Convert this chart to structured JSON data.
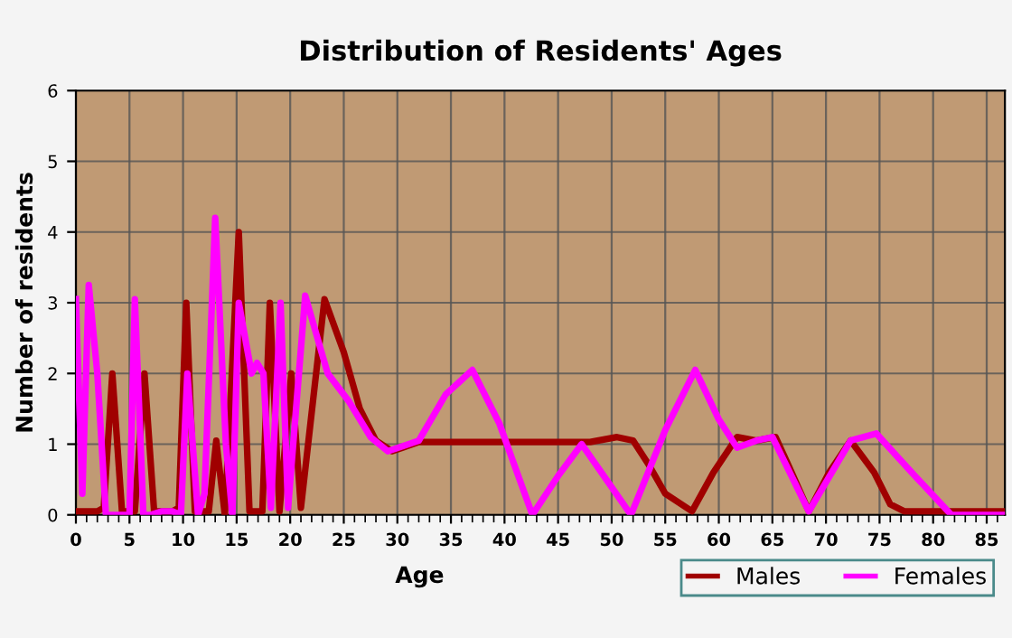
{
  "chart_data": {
    "type": "line",
    "title": "Distribution of Residents' Ages",
    "xlabel": "Age",
    "ylabel": "Number of residents",
    "xlim": [
      0,
      86.7
    ],
    "xticks": [
      0,
      5,
      10,
      15,
      20,
      25,
      30,
      35,
      40,
      45,
      50,
      55,
      60,
      65,
      70,
      75,
      80,
      85
    ],
    "ylim": [
      0,
      6
    ],
    "yticks": [
      0,
      1,
      2,
      3,
      4,
      5,
      6
    ],
    "grid": true,
    "legend": "bottom right",
    "marker": "none",
    "line_style": "solid",
    "series": [
      {
        "name": "Males",
        "color": "#a00000",
        "x": [
          0,
          1,
          2,
          2.6,
          3.4,
          4.3,
          5.5,
          6.4,
          7.3,
          8,
          9,
          9.6,
          10.3,
          11.1,
          12.4,
          13.1,
          13.9,
          15.2,
          16.2,
          17.4,
          18.1,
          19,
          20.1,
          21,
          23.2,
          25,
          26.5,
          28,
          29.5,
          30.5,
          32,
          40,
          48,
          50.5,
          52,
          53.5,
          55,
          57.5,
          59.5,
          61.7,
          63.5,
          65.3,
          66.5,
          68.4,
          70.3,
          72.3,
          74.5,
          76,
          77.3,
          86.7
        ],
        "values": [
          0.05,
          0.05,
          0.05,
          0.1,
          2,
          0.05,
          0.05,
          2,
          0.05,
          0.05,
          0.05,
          0.1,
          3,
          0.05,
          0.05,
          1.05,
          0,
          4,
          0.05,
          0.05,
          3,
          0.05,
          2,
          0.1,
          3.05,
          2.3,
          1.5,
          1.05,
          0.9,
          0.95,
          1.03,
          1.03,
          1.03,
          1.1,
          1.05,
          0.7,
          0.3,
          0.05,
          0.6,
          1.1,
          1.05,
          1.1,
          0.7,
          0.05,
          0.6,
          1.05,
          0.6,
          0.15,
          0.05,
          0.05
        ]
      },
      {
        "name": "Females",
        "color": "#ff00ff",
        "x": [
          0,
          0.6,
          1.2,
          2,
          2.8,
          4,
          5,
          5.5,
          6.3,
          7,
          8,
          9,
          9.8,
          10.4,
          11.4,
          12,
          13,
          14,
          14.6,
          15.2,
          16.4,
          16.9,
          17.5,
          18.2,
          19.1,
          19.8,
          21.4,
          23.5,
          25.5,
          27.5,
          29.1,
          32,
          34.5,
          37,
          39.5,
          42.6,
          45,
          47.2,
          49.5,
          51.8,
          55,
          57.8,
          60,
          61.7,
          63.5,
          65,
          68.4,
          72.3,
          74.7,
          78,
          81.7,
          86.7
        ],
        "values": [
          3.05,
          0.3,
          3.25,
          2,
          0,
          0,
          0,
          3.05,
          0,
          0,
          0.05,
          0.05,
          0,
          2,
          0,
          0.3,
          4.2,
          1,
          0,
          3,
          2,
          2.15,
          2,
          0.1,
          3,
          0.1,
          3.1,
          2,
          1.6,
          1.1,
          0.9,
          1.05,
          1.7,
          2.05,
          1.3,
          0,
          0.55,
          1,
          0.5,
          0,
          1.2,
          2.05,
          1.35,
          0.95,
          1.05,
          1.1,
          0.05,
          1.05,
          1.15,
          0.6,
          0,
          0
        ]
      }
    ]
  }
}
